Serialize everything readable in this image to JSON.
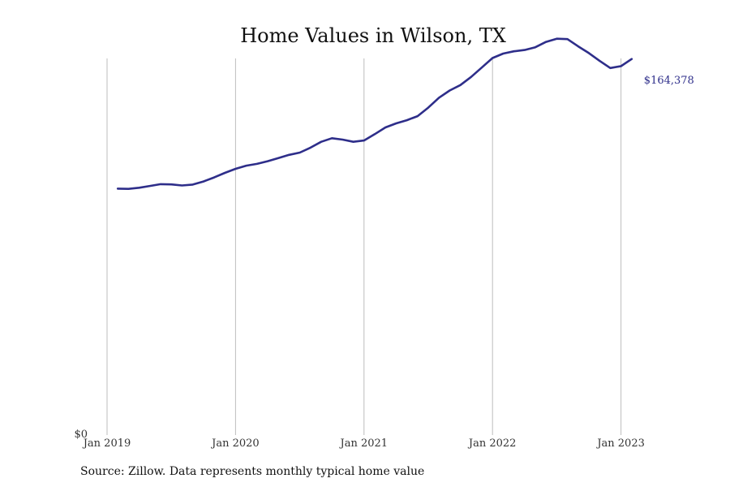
{
  "chart_data": {
    "type": "line",
    "title": "Home Values in Wilson, TX",
    "xlabel": "",
    "ylabel": "",
    "x_ticks": [
      {
        "label": "Jan 2019",
        "date": "2019-01"
      },
      {
        "label": "Jan 2020",
        "date": "2020-01"
      },
      {
        "label": "Jan 2021",
        "date": "2021-01"
      },
      {
        "label": "Jan 2022",
        "date": "2022-01"
      },
      {
        "label": "Jan 2023",
        "date": "2023-01"
      }
    ],
    "y_ticks": [
      {
        "label": "$0",
        "value": 0
      }
    ],
    "ylim": [
      0,
      168000
    ],
    "xlim": [
      "2019-01",
      "2023-09"
    ],
    "grid": "vertical",
    "line_color": "#2e2e8a",
    "end_label": "$164,378",
    "series": [
      {
        "x": [
          "2019-02",
          "2019-03",
          "2019-04",
          "2019-05",
          "2019-06",
          "2019-07",
          "2019-08",
          "2019-09",
          "2019-10",
          "2019-11",
          "2019-12",
          "2020-01",
          "2020-02",
          "2020-03",
          "2020-04",
          "2020-05",
          "2020-06",
          "2020-07",
          "2020-08",
          "2020-09",
          "2020-10",
          "2020-11",
          "2020-12",
          "2021-01",
          "2021-02",
          "2021-03",
          "2021-04",
          "2021-05",
          "2021-06",
          "2021-07",
          "2021-08",
          "2021-09",
          "2021-10",
          "2021-11",
          "2021-12",
          "2022-01",
          "2022-02",
          "2022-03",
          "2022-04",
          "2022-05",
          "2022-06",
          "2022-07",
          "2022-08",
          "2022-09",
          "2022-10",
          "2022-11",
          "2022-12",
          "2023-01",
          "2023-02"
        ],
        "y": [
          108000,
          107900,
          108400,
          109200,
          110000,
          109900,
          109400,
          109800,
          111200,
          113000,
          115000,
          116800,
          118200,
          119000,
          120200,
          121600,
          123000,
          124000,
          126200,
          128800,
          130400,
          129800,
          128800,
          129400,
          132200,
          135200,
          137000,
          138400,
          140200,
          144000,
          148400,
          151600,
          154000,
          157600,
          161800,
          166000,
          168000,
          169000,
          169600,
          170800,
          173200,
          174600,
          174400,
          171200,
          168200,
          164800,
          161600,
          162400,
          165600
        ]
      }
    ]
  },
  "footer": {
    "source": "Source: Zillow. Data represents monthly typical home value"
  }
}
